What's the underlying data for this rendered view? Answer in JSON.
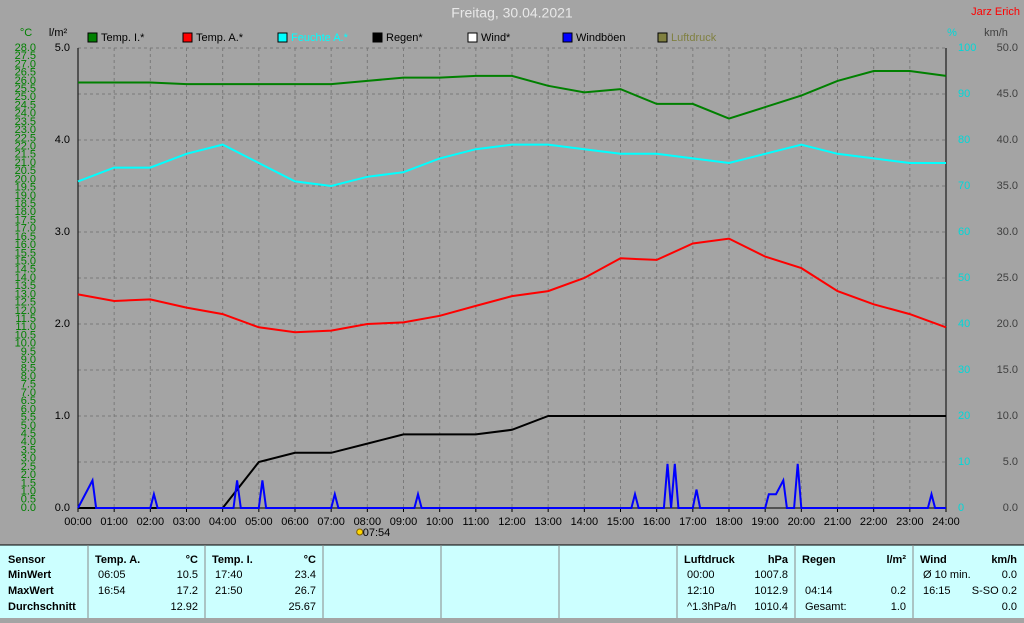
{
  "chart_data": {
    "type": "line",
    "title": "Freitag, 30.04.2021",
    "author": "Jarz Erich",
    "axes": [
      {
        "unit": "°C",
        "color": "#008000",
        "lim": [
          0,
          28
        ],
        "ticks": [
          {
            "value": 0,
            "label": "0.0"
          },
          {
            "value": 0.5,
            "label": "0.5"
          },
          {
            "value": 1,
            "label": "1.0"
          },
          {
            "value": 1.5,
            "label": "1.5"
          },
          {
            "value": 2,
            "label": "2.0"
          },
          {
            "value": 2.5,
            "label": "2.5"
          },
          {
            "value": 3,
            "label": "3.0"
          },
          {
            "value": 3.5,
            "label": "3.5"
          },
          {
            "value": 4,
            "label": "4.0"
          },
          {
            "value": 4.5,
            "label": "4.5"
          },
          {
            "value": 5,
            "label": "5.0"
          },
          {
            "value": 5.5,
            "label": "5.5"
          },
          {
            "value": 6,
            "label": "6.0"
          },
          {
            "value": 6.5,
            "label": "6.5"
          },
          {
            "value": 7,
            "label": "7.0"
          },
          {
            "value": 7.5,
            "label": "7.5"
          },
          {
            "value": 8,
            "label": "8.0"
          },
          {
            "value": 8.5,
            "label": "8.5"
          },
          {
            "value": 9,
            "label": "9.0"
          },
          {
            "value": 9.5,
            "label": "9.5"
          },
          {
            "value": 10,
            "label": "10.0"
          },
          {
            "value": 10.5,
            "label": "10.5"
          },
          {
            "value": 11,
            "label": "11.0"
          },
          {
            "value": 11.5,
            "label": "11.5"
          },
          {
            "value": 12,
            "label": "12.0"
          },
          {
            "value": 12.5,
            "label": "12.5"
          },
          {
            "value": 13,
            "label": "13.0"
          },
          {
            "value": 13.5,
            "label": "13.5"
          },
          {
            "value": 14,
            "label": "14.0"
          },
          {
            "value": 14.5,
            "label": "14.5"
          },
          {
            "value": 15,
            "label": "15.0"
          },
          {
            "value": 15.5,
            "label": "15.5"
          },
          {
            "value": 16,
            "label": "16.0"
          },
          {
            "value": 16.5,
            "label": "16.5"
          },
          {
            "value": 17,
            "label": "17.0"
          },
          {
            "value": 17.5,
            "label": "17.5"
          },
          {
            "value": 18,
            "label": "18.0"
          },
          {
            "value": 18.5,
            "label": "18.5"
          },
          {
            "value": 19,
            "label": "19.0"
          },
          {
            "value": 19.5,
            "label": "19.5"
          },
          {
            "value": 20,
            "label": "20.0"
          },
          {
            "value": 20.5,
            "label": "20.5"
          },
          {
            "value": 21,
            "label": "21.0"
          },
          {
            "value": 21.5,
            "label": "21.5"
          },
          {
            "value": 22,
            "label": "22.0"
          },
          {
            "value": 22.5,
            "label": "22.5"
          },
          {
            "value": 23,
            "label": "23.0"
          },
          {
            "value": 23.5,
            "label": "23.5"
          },
          {
            "value": 24,
            "label": "24.0"
          },
          {
            "value": 24.5,
            "label": "24.5"
          },
          {
            "value": 25,
            "label": "25.0"
          },
          {
            "value": 25.5,
            "label": "25.5"
          },
          {
            "value": 26,
            "label": "26.0"
          },
          {
            "value": 26.5,
            "label": "26.5"
          },
          {
            "value": 27,
            "label": "27.0"
          },
          {
            "value": 27.5,
            "label": "27.5"
          },
          {
            "value": 28,
            "label": "28.0"
          }
        ]
      },
      {
        "unit": "l/m²",
        "color": "#000000",
        "lim": [
          0,
          5
        ],
        "ticks": [
          {
            "value": 0,
            "label": "0.0"
          },
          {
            "value": 1,
            "label": "1.0"
          },
          {
            "value": 2,
            "label": "2.0"
          },
          {
            "value": 3,
            "label": "3.0"
          },
          {
            "value": 4,
            "label": "4.0"
          },
          {
            "value": 5,
            "label": "5.0"
          }
        ]
      },
      {
        "unit": "%",
        "color": "#00d8d8",
        "lim": [
          0,
          100
        ],
        "ticks": [
          0,
          10,
          20,
          30,
          40,
          50,
          60,
          70,
          80,
          90,
          100
        ]
      },
      {
        "unit": "km/h",
        "color": "#404040",
        "lim": [
          0,
          50
        ],
        "ticks": [
          {
            "value": 0,
            "label": "0.0"
          },
          {
            "value": 5,
            "label": "5.0"
          },
          {
            "value": 10,
            "label": "10.0"
          },
          {
            "value": 15,
            "label": "15.0"
          },
          {
            "value": 20,
            "label": "20.0"
          },
          {
            "value": 25,
            "label": "25.0"
          },
          {
            "value": 30,
            "label": "30.0"
          },
          {
            "value": 35,
            "label": "35.0"
          },
          {
            "value": 40,
            "label": "40.0"
          },
          {
            "value": 45,
            "label": "45.0"
          },
          {
            "value": 50,
            "label": "50.0"
          }
        ]
      }
    ],
    "xlim": [
      0,
      24
    ],
    "xticks": [
      {
        "value": 0,
        "label": "00:00"
      },
      {
        "value": 1,
        "label": "01:00"
      },
      {
        "value": 2,
        "label": "02:00"
      },
      {
        "value": 3,
        "label": "03:00"
      },
      {
        "value": 4,
        "label": "04:00"
      },
      {
        "value": 5,
        "label": "05:00"
      },
      {
        "value": 6,
        "label": "06:00"
      },
      {
        "value": 7,
        "label": "07:00"
      },
      {
        "value": 8,
        "label": "08:00"
      },
      {
        "value": 9,
        "label": "09:00"
      },
      {
        "value": 10,
        "label": "10:00"
      },
      {
        "value": 11,
        "label": "11:00"
      },
      {
        "value": 12,
        "label": "12:00"
      },
      {
        "value": 13,
        "label": "13:00"
      },
      {
        "value": 14,
        "label": "14:00"
      },
      {
        "value": 15,
        "label": "15:00"
      },
      {
        "value": 16,
        "label": "16:00"
      },
      {
        "value": 17,
        "label": "17:00"
      },
      {
        "value": 18,
        "label": "18:00"
      },
      {
        "value": 19,
        "label": "19:00"
      },
      {
        "value": 20,
        "label": "20:00"
      },
      {
        "value": 21,
        "label": "21:00"
      },
      {
        "value": 22,
        "label": "22:00"
      },
      {
        "value": 23,
        "label": "23:00"
      },
      {
        "value": 24,
        "label": "24:00"
      }
    ],
    "grid": true,
    "x": [
      0,
      1,
      2,
      3,
      4,
      5,
      6,
      7,
      8,
      9,
      10,
      11,
      12,
      13,
      14,
      15,
      16,
      17,
      18,
      19,
      20,
      21,
      22,
      23,
      24
    ],
    "series": [
      {
        "name": "Temp. I.*",
        "color": "#008000",
        "axis": 0,
        "values": [
          25.9,
          25.9,
          25.9,
          25.8,
          25.8,
          25.8,
          25.8,
          25.8,
          26.0,
          26.2,
          26.2,
          26.3,
          26.3,
          25.7,
          25.3,
          25.5,
          24.6,
          24.6,
          23.7,
          24.4,
          25.1,
          26.0,
          26.6,
          26.6,
          26.3
        ]
      },
      {
        "name": "Temp. A.*",
        "color": "#ff0000",
        "axis": 0,
        "values": [
          13.0,
          12.6,
          12.7,
          12.2,
          11.8,
          11.0,
          10.7,
          10.8,
          11.2,
          11.3,
          11.7,
          12.3,
          12.9,
          13.2,
          14.0,
          15.2,
          15.1,
          16.1,
          16.4,
          15.3,
          14.6,
          13.2,
          12.4,
          11.8,
          11.0
        ]
      },
      {
        "name": "Feuchte A.*",
        "color": "#00ffff",
        "axis": 2,
        "values": [
          71,
          74,
          74,
          77,
          79,
          75,
          71,
          70,
          72,
          73,
          76,
          78,
          79,
          79,
          78,
          77,
          77,
          76,
          75,
          77,
          79,
          77,
          76,
          75,
          75
        ]
      },
      {
        "name": "Regen*",
        "color": "#000000",
        "axis": 1,
        "values": [
          0,
          0,
          0,
          0,
          0,
          0.5,
          0.6,
          0.6,
          0.7,
          0.8,
          0.8,
          0.8,
          0.85,
          1.0,
          1.0,
          1.0,
          1.0,
          1.0,
          1.0,
          1.0,
          1.0,
          1.0,
          1.0,
          1.0,
          1.0
        ]
      },
      {
        "name": "Wind*",
        "color": "#ffffff",
        "axis": 3
      },
      {
        "name": "Windböen",
        "color": "#0000ff",
        "axis": 3,
        "x": [
          0,
          0.4,
          0.5,
          2.0,
          2.1,
          2.2,
          4.3,
          4.4,
          4.5,
          5.0,
          5.1,
          5.2,
          7.0,
          7.1,
          7.2,
          9.3,
          9.4,
          9.5,
          15.3,
          15.4,
          15.5,
          16.2,
          16.3,
          16.4,
          16.5,
          16.6,
          17.0,
          17.1,
          17.2,
          19.0,
          19.1,
          19.3,
          19.5,
          19.6,
          19.8,
          19.9,
          20.0,
          23.5,
          23.6,
          23.7,
          24
        ],
        "values": [
          0,
          3.0,
          0,
          0,
          1.5,
          0,
          0,
          3.0,
          0,
          0,
          3.0,
          0,
          0,
          1.5,
          0,
          0,
          1.5,
          0,
          0,
          1.5,
          0,
          0,
          4.8,
          0,
          4.8,
          0,
          0,
          2.0,
          0,
          0,
          1.5,
          1.5,
          3.0,
          0,
          0,
          4.8,
          0,
          0,
          1.5,
          0,
          0
        ]
      },
      {
        "name": "Luftdruck",
        "color": "#808040"
      }
    ],
    "annotation": {
      "x": 7.9,
      "label": "07:54"
    }
  },
  "table": {
    "sensor": [
      "Sensor",
      "MinWert",
      "MaxWert",
      "Durchschnitt"
    ],
    "groups": [
      {
        "head": [
          "Temp. A.",
          "°C"
        ],
        "rows": [
          [
            "06:05",
            "10.5"
          ],
          [
            "16:54",
            "17.2"
          ],
          [
            null,
            "12.92"
          ]
        ]
      },
      {
        "head": [
          "Temp. I.",
          "°C"
        ],
        "rows": [
          [
            "17:40",
            "23.4"
          ],
          [
            "21:50",
            "26.7"
          ],
          [
            null,
            "25.67"
          ]
        ]
      },
      {
        "head": [
          "Luftdruck",
          "hPa"
        ],
        "rows": [
          [
            "00:00",
            "1007.8"
          ],
          [
            "12:10",
            "1012.9"
          ],
          [
            "^1.3hPa/h",
            "1010.4"
          ]
        ]
      },
      {
        "head": [
          "Regen",
          "l/m²"
        ],
        "rows": [
          [
            null,
            null
          ],
          [
            "04:14",
            "0.2"
          ],
          [
            "Gesamt:",
            "1.0"
          ]
        ]
      },
      {
        "head": [
          "Wind",
          "km/h"
        ],
        "rows": [
          [
            "Ø 10 min.",
            "0.0"
          ],
          [
            "16:15",
            "S-SO 0.2"
          ],
          [
            null,
            "0.0"
          ]
        ]
      }
    ]
  }
}
